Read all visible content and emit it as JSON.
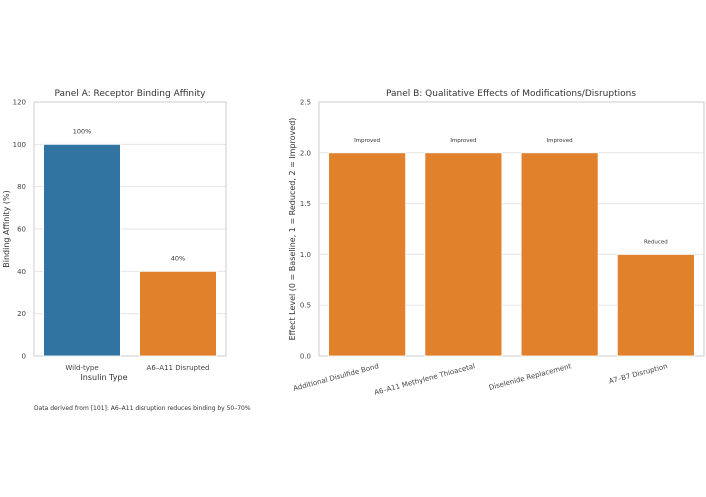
{
  "colors": {
    "blue": "#3274a1",
    "orange": "#e1812c",
    "grid": "#e6e6e6",
    "frame": "#d5d5d5"
  },
  "footnote": "Data derived from [101]: A6–A11 disruption reduces binding by 50–70%",
  "chart_data": [
    {
      "type": "bar",
      "title": "Panel A: Receptor Binding Affinity",
      "xlabel": "Insulin Type",
      "ylabel": "Binding Affinity (%)",
      "ylim": [
        0,
        120
      ],
      "yticks": [
        0,
        20,
        40,
        60,
        80,
        100,
        120
      ],
      "categories": [
        "Wild-type",
        "A6–A11 Disrupted"
      ],
      "values": [
        100,
        40
      ],
      "data_labels": [
        "100%",
        "40%"
      ],
      "bar_colors": [
        "#3274a1",
        "#e1812c"
      ],
      "grid": true
    },
    {
      "type": "bar",
      "title": "Panel B: Qualitative Effects of Modifications/Disruptions",
      "xlabel": "",
      "ylabel": "Effect Level (0 = Baseline, 1 = Reduced, 2 = Improved)",
      "ylim": [
        0,
        2.5
      ],
      "yticks": [
        "0.0",
        "0.5",
        "1.0",
        "1.5",
        "2.0",
        "2.5"
      ],
      "categories": [
        "Additional Disulfide Bond",
        "A6–A11 Methylene Thioacetal",
        "Diselenide Replacement",
        "A7–B7 Disruption"
      ],
      "values": [
        2,
        2,
        2,
        1
      ],
      "data_labels": [
        "Improved",
        "Improved",
        "Improved",
        "Reduced"
      ],
      "bar_colors": [
        "#e1812c",
        "#e1812c",
        "#e1812c",
        "#e1812c"
      ],
      "grid": true
    }
  ]
}
